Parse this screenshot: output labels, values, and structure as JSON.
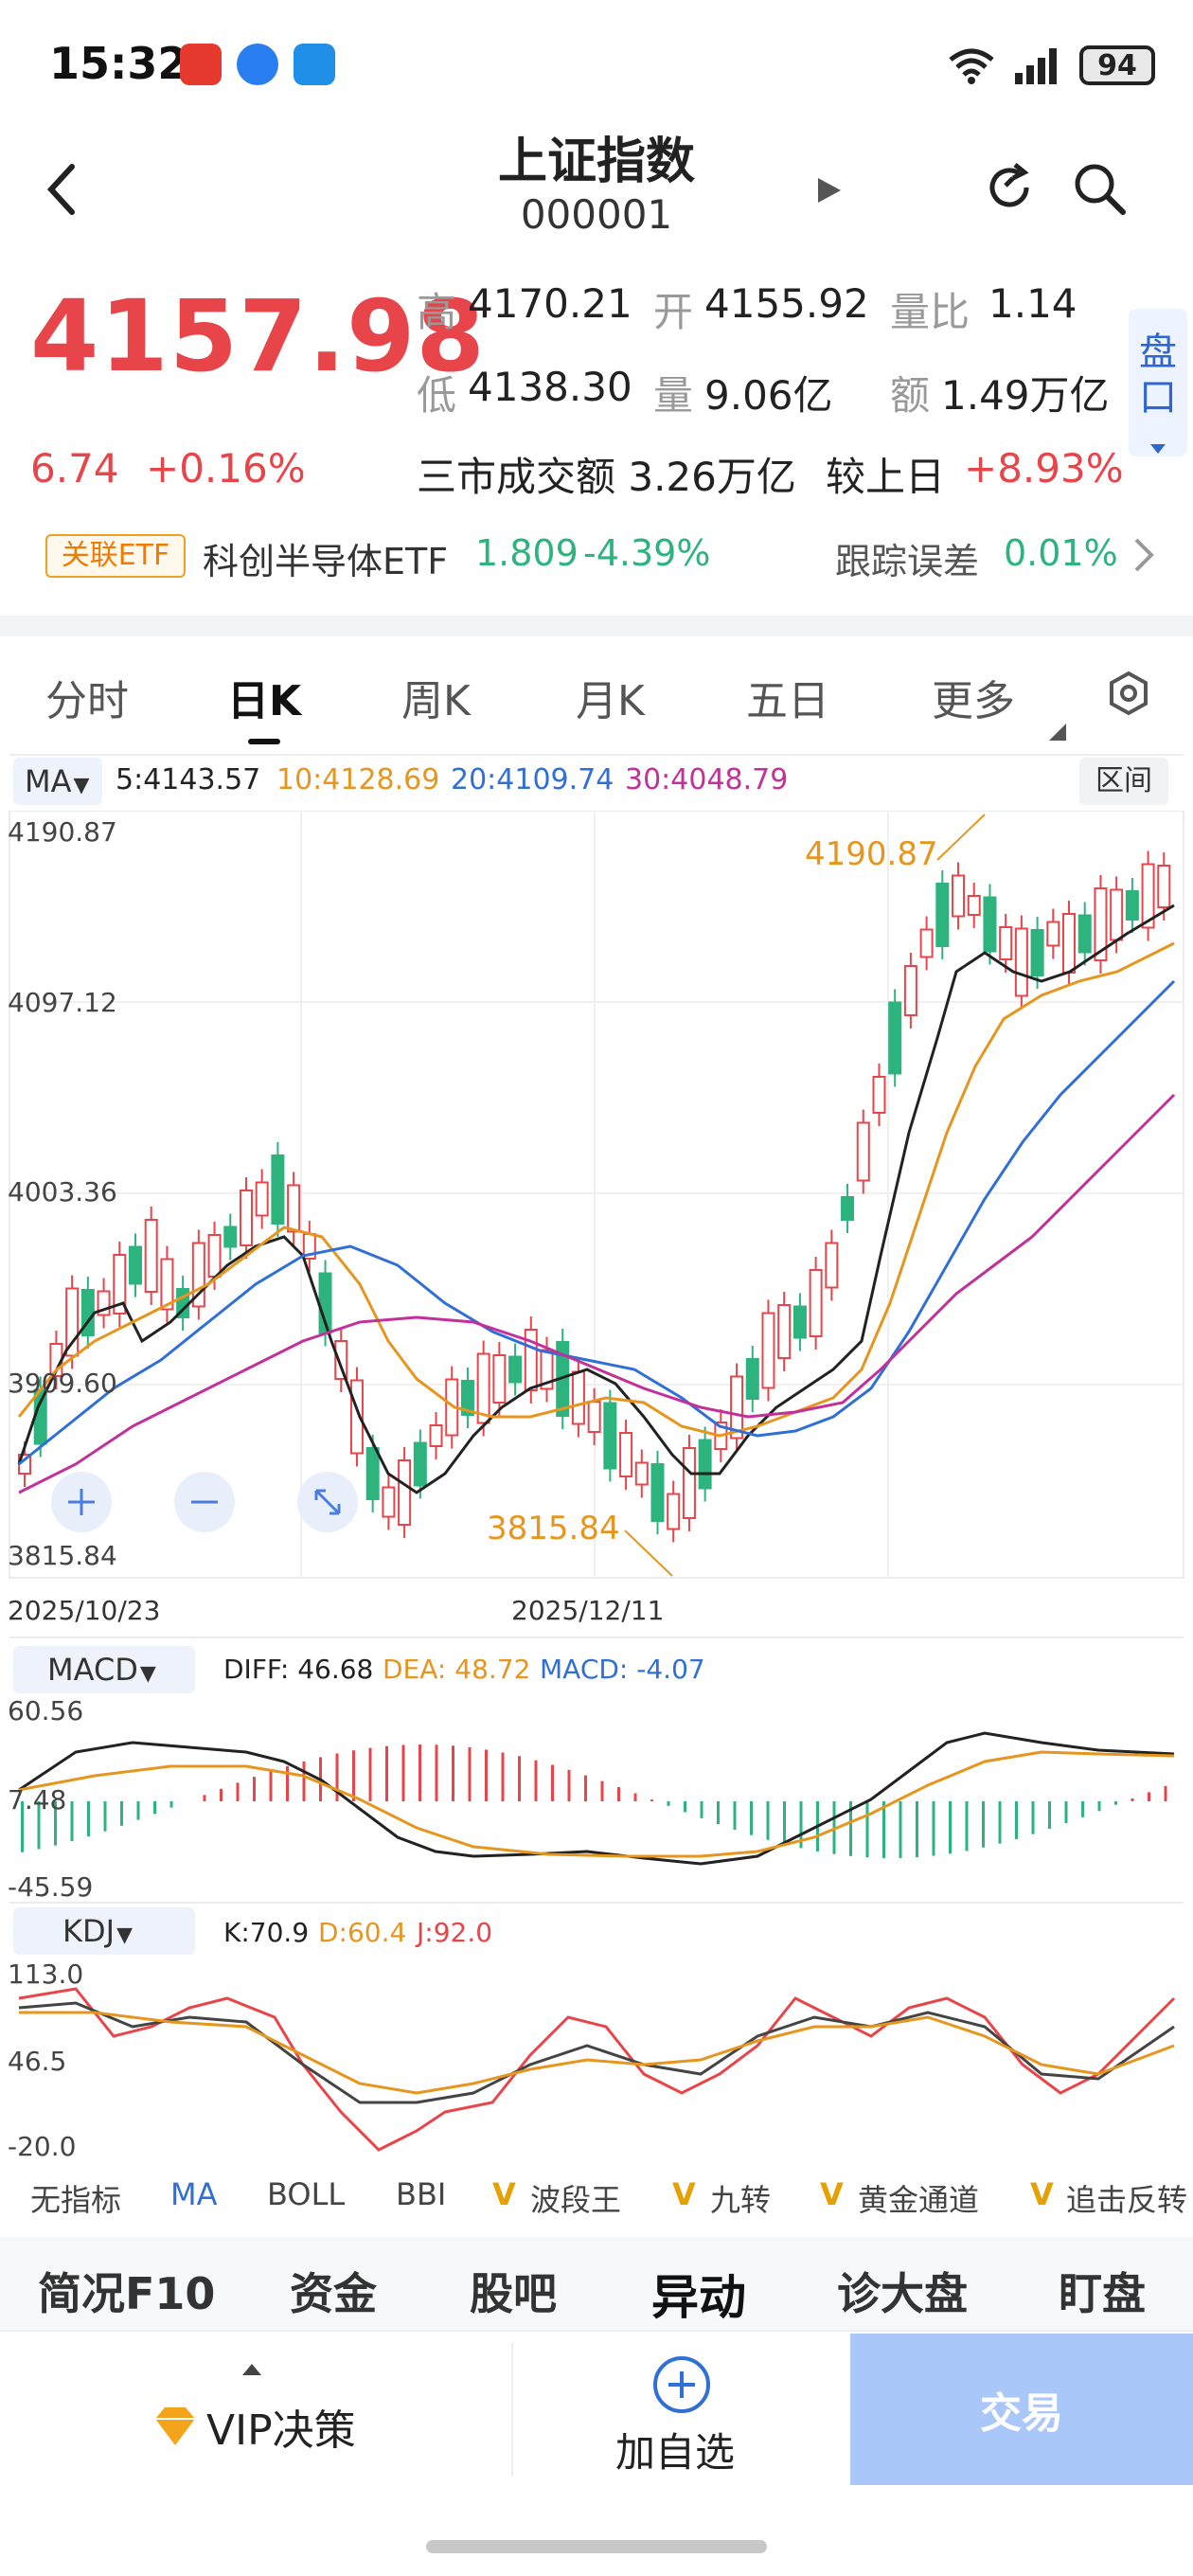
{
  "status": {
    "time": "15:32",
    "battery": "94"
  },
  "header": {
    "title": "上证指数",
    "code": "000001"
  },
  "quote": {
    "price": "4157.98",
    "change": "6.74",
    "change_pct": "+0.16%",
    "high_label": "高",
    "high": "4170.21",
    "open_label": "开",
    "open": "4155.92",
    "vol_ratio_label": "量比",
    "vol_ratio": "1.14",
    "low_label": "低",
    "low": "4138.30",
    "volume_label": "量",
    "volume": "9.06亿",
    "amount_label": "额",
    "amount": "1.49万亿",
    "market_turnover": "三市成交额 3.26万亿",
    "vs_prev_label": "较上日",
    "vs_prev": "+8.93%",
    "pankou": "盘口"
  },
  "etf": {
    "tag": "关联ETF",
    "name": "科创半导体ETF",
    "price": "1.809",
    "pct": "-4.39%",
    "tracking_label": "跟踪误差",
    "tracking": "0.01%"
  },
  "tabs": [
    "分时",
    "日K",
    "周K",
    "月K",
    "五日",
    "更多"
  ],
  "ma_legend": {
    "selector": "MA",
    "ma5": "5:4143.57",
    "ma10": "10:4128.69",
    "ma20": "20:4109.74",
    "ma30": "30:4048.79",
    "range_btn": "区间"
  },
  "colors": {
    "up": "#e8454a",
    "down": "#2db37d",
    "ma5": "#222222",
    "ma10": "#e6961e",
    "ma20": "#2f6fd6",
    "ma30": "#c2309a"
  },
  "kline": {
    "y_labels": [
      "4190.87",
      "4097.12",
      "4003.36",
      "3909.60",
      "3815.84"
    ],
    "high_mark": "4190.87",
    "low_mark": "3815.84",
    "dates": [
      "2025/10/23",
      "2025/12/11"
    ]
  },
  "macd": {
    "selector": "MACD",
    "diff": "DIFF: 46.68",
    "dea": "DEA: 48.72",
    "macd": "MACD: -4.07",
    "y_labels": [
      "60.56",
      "7.48",
      "-45.59"
    ]
  },
  "kdj": {
    "selector": "KDJ",
    "k": "K:70.9",
    "d": "D:60.4",
    "j": "J:92.0",
    "y_labels": [
      "113.0",
      "46.5",
      "-20.0"
    ]
  },
  "indicators": [
    "无指标",
    "MA",
    "BOLL",
    "BBI",
    "波段王",
    "九转",
    "黄金通道",
    "追击反转"
  ],
  "bottom_tabs": [
    "简况F10",
    "资金",
    "股吧",
    "异动",
    "诊大盘",
    "盯盘"
  ],
  "actions": {
    "vip": "VIP决策",
    "add": "加自选",
    "trade": "交易"
  }
}
